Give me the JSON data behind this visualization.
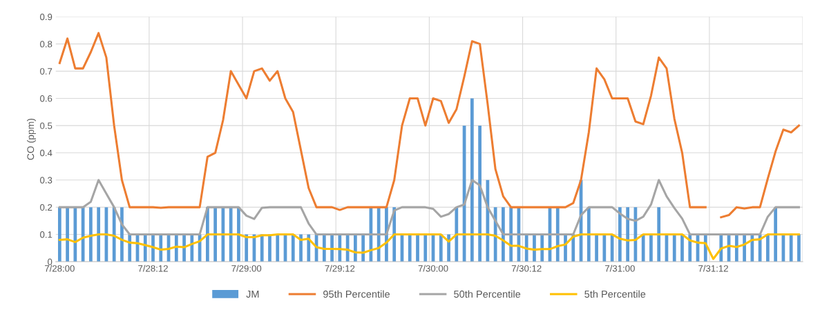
{
  "chart_data": {
    "type": "bar",
    "ylabel": "CO (ppm)",
    "categories": [
      "7/28:00",
      null,
      null,
      null,
      null,
      null,
      null,
      null,
      null,
      null,
      null,
      null,
      "7/28:12",
      null,
      null,
      null,
      null,
      null,
      null,
      null,
      null,
      null,
      null,
      null,
      "7/29:00",
      null,
      null,
      null,
      null,
      null,
      null,
      null,
      null,
      null,
      null,
      null,
      "7/29:12",
      null,
      null,
      null,
      null,
      null,
      null,
      null,
      null,
      null,
      null,
      null,
      "7/30:00",
      null,
      null,
      null,
      null,
      null,
      null,
      null,
      null,
      null,
      null,
      null,
      "7/30:12",
      null,
      null,
      null,
      null,
      null,
      null,
      null,
      null,
      null,
      null,
      null,
      "7/31:00",
      null,
      null,
      null,
      null,
      null,
      null,
      null,
      null,
      null,
      null,
      null,
      "7/31:12",
      null,
      null,
      null,
      null,
      null,
      null,
      null,
      null,
      null,
      null,
      null
    ],
    "series": [
      {
        "name": "JM",
        "color": "#5b9bd5",
        "values": [
          0.2,
          0.2,
          0.2,
          0.2,
          0.2,
          0.2,
          0.2,
          0.2,
          0.2,
          0.1,
          0.1,
          0.1,
          0.1,
          0.1,
          0.1,
          0.1,
          0.1,
          0.1,
          0.1,
          0.2,
          0.2,
          0.2,
          0.2,
          0.2,
          0.1,
          0.1,
          0.1,
          0.1,
          0.1,
          0.1,
          0.1,
          0.1,
          0.1,
          0.1,
          0.1,
          0.1,
          0.1,
          0.1,
          0.1,
          0.1,
          0.2,
          0.2,
          0.2,
          0.2,
          0.1,
          0.1,
          0.1,
          0.1,
          0.1,
          0.1,
          0.1,
          0.2,
          0.5,
          0.6,
          0.5,
          0.3,
          0.2,
          0.2,
          0.2,
          0.2,
          0.1,
          0.1,
          0.1,
          0.2,
          0.2,
          0.1,
          0.1,
          0.3,
          0.2,
          0.1,
          0.1,
          0.1,
          0.2,
          0.2,
          0.2,
          0.1,
          0.1,
          0.2,
          0.1,
          0.1,
          0.1,
          0.1,
          0.1,
          0.1,
          null,
          0.1,
          0.1,
          0.1,
          0.1,
          0.1,
          0.1,
          0.1,
          0.2,
          0.1,
          0.1,
          0.1
        ]
      },
      {
        "name": "95th Percentile",
        "type": "line",
        "color": "#ed7d31",
        "values": [
          0.73,
          0.82,
          0.71,
          0.71,
          0.77,
          0.84,
          0.75,
          0.5,
          0.3,
          0.2,
          0.2,
          0.2,
          0.2,
          0.198,
          0.2,
          0.2,
          0.2,
          0.2,
          0.2,
          0.385,
          0.4,
          0.52,
          0.7,
          0.65,
          0.6,
          0.7,
          0.71,
          0.665,
          0.7,
          0.6,
          0.55,
          0.41,
          0.27,
          0.2,
          0.2,
          0.2,
          0.19,
          0.2,
          0.2,
          0.2,
          0.2,
          0.2,
          0.2,
          0.3,
          0.5,
          0.6,
          0.6,
          0.5,
          0.6,
          0.59,
          0.51,
          0.56,
          0.68,
          0.81,
          0.8,
          0.58,
          0.34,
          0.24,
          0.2,
          0.2,
          0.2,
          0.2,
          0.2,
          0.2,
          0.2,
          0.2,
          0.215,
          0.3,
          0.475,
          0.71,
          0.67,
          0.6,
          0.6,
          0.6,
          0.515,
          0.505,
          0.61,
          0.75,
          0.71,
          0.525,
          0.4,
          0.2,
          0.2,
          0.2,
          null,
          0.163,
          0.171,
          0.2,
          0.195,
          0.2,
          0.2,
          0.305,
          0.405,
          0.485,
          0.475,
          0.5
        ]
      },
      {
        "name": "50th Percentile",
        "type": "line",
        "color": "#a5a5a5",
        "values": [
          0.2,
          0.2,
          0.2,
          0.2,
          0.22,
          0.3,
          0.25,
          0.2,
          0.137,
          0.1,
          0.1,
          0.1,
          0.1,
          0.1,
          0.1,
          0.1,
          0.1,
          0.1,
          0.1,
          0.2,
          0.2,
          0.2,
          0.2,
          0.2,
          0.169,
          0.157,
          0.198,
          0.2,
          0.2,
          0.2,
          0.2,
          0.2,
          0.14,
          0.1,
          0.1,
          0.1,
          0.1,
          0.1,
          0.1,
          0.1,
          0.1,
          0.1,
          0.1,
          0.188,
          0.2,
          0.2,
          0.2,
          0.2,
          0.194,
          0.165,
          0.175,
          0.2,
          0.21,
          0.3,
          0.28,
          0.2,
          0.15,
          0.1,
          0.1,
          0.1,
          0.1,
          0.1,
          0.1,
          0.1,
          0.1,
          0.1,
          0.1,
          0.171,
          0.2,
          0.2,
          0.2,
          0.2,
          0.177,
          0.157,
          0.15,
          0.165,
          0.21,
          0.3,
          0.24,
          0.197,
          0.158,
          0.1,
          0.1,
          0.1,
          0.1,
          0.1,
          0.1,
          0.1,
          0.1,
          0.1,
          0.1,
          0.165,
          0.2,
          0.2,
          0.2,
          0.2
        ]
      },
      {
        "name": "5th Percentile",
        "type": "line",
        "color": "#ffc000",
        "values": [
          0.08,
          0.082,
          0.072,
          0.088,
          0.095,
          0.1,
          0.1,
          0.095,
          0.08,
          0.07,
          0.068,
          0.061,
          0.053,
          0.044,
          0.047,
          0.055,
          0.053,
          0.065,
          0.075,
          0.1,
          0.1,
          0.1,
          0.1,
          0.1,
          0.09,
          0.09,
          0.097,
          0.097,
          0.1,
          0.1,
          0.1,
          0.08,
          0.084,
          0.053,
          0.047,
          0.047,
          0.046,
          0.044,
          0.034,
          0.033,
          0.042,
          0.05,
          0.07,
          0.1,
          0.1,
          0.1,
          0.1,
          0.1,
          0.1,
          0.1,
          0.074,
          0.1,
          0.1,
          0.1,
          0.1,
          0.1,
          0.095,
          0.078,
          0.058,
          0.058,
          0.048,
          0.044,
          0.046,
          0.046,
          0.057,
          0.063,
          0.092,
          0.1,
          0.1,
          0.1,
          0.1,
          0.1,
          0.084,
          0.078,
          0.08,
          0.1,
          0.1,
          0.1,
          0.1,
          0.1,
          0.1,
          0.078,
          0.07,
          0.068,
          0.01,
          0.048,
          0.058,
          0.054,
          0.063,
          0.08,
          0.082,
          0.1,
          0.1,
          0.1,
          0.1,
          0.1
        ]
      }
    ],
    "ylim": [
      0,
      0.9
    ],
    "yticks": [
      0,
      0.1,
      0.2,
      0.3,
      0.4,
      0.5,
      0.6,
      0.7,
      0.8,
      0.9
    ],
    "grid": true,
    "legend": "bottom"
  }
}
